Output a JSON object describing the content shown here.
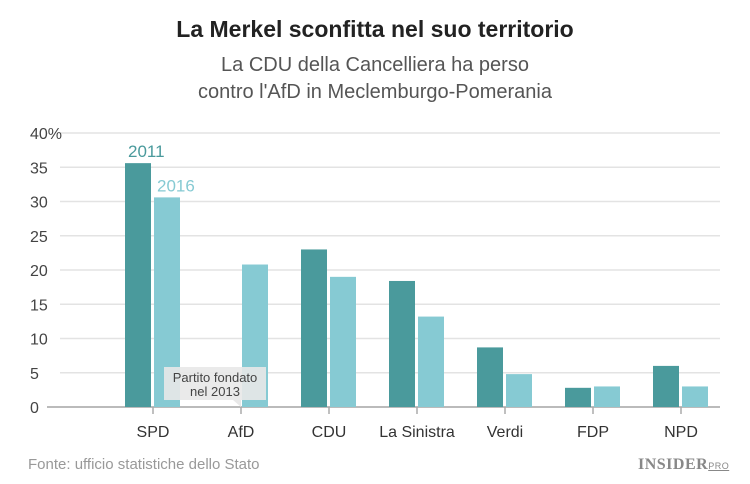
{
  "title": "La Merkel sconfitta nel suo territorio",
  "subtitle_lines": [
    "La CDU della Cancelliera ha perso",
    "contro l'AfD in Meclemburgo-Pomerania"
  ],
  "source": "Fonte: ufficio statistiche dello Stato",
  "logo": {
    "main": "INSIDER",
    "suffix": "PRO"
  },
  "colors": {
    "2011": "#4a9a9c",
    "2016": "#86cad3"
  },
  "chart_data": {
    "type": "bar",
    "title": "La Merkel sconfitta nel suo territorio",
    "categories": [
      "SPD",
      "AfD",
      "CDU",
      "La Sinistra",
      "Verdi",
      "FDP",
      "NPD"
    ],
    "series": [
      {
        "name": "2011",
        "values": [
          35.6,
          null,
          23.0,
          18.4,
          8.7,
          2.8,
          6.0
        ]
      },
      {
        "name": "2016",
        "values": [
          30.6,
          20.8,
          19.0,
          13.2,
          4.8,
          3.0,
          3.0
        ]
      }
    ],
    "ylim": [
      0,
      40
    ],
    "yticks": [
      "0",
      "5",
      "10",
      "15",
      "20",
      "25",
      "30",
      "35",
      "40%"
    ],
    "grid": true,
    "annotation": {
      "category": "AfD",
      "lines": [
        "Partito fondato",
        "nel 2013"
      ]
    }
  }
}
